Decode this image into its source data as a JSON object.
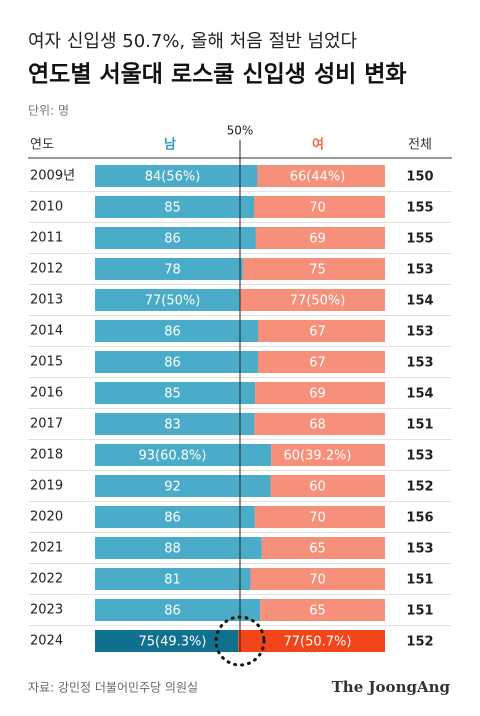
{
  "chart_data": {
    "type": "diverging-bar",
    "subtitle": "여자 신입생 50.7%, 올해 처음 절반 넘었다",
    "title": "연도별 서울대 로스쿨 신입생 성비 변화",
    "unit": "단위: 명",
    "headers": [
      "연도",
      "남",
      "여",
      "전체"
    ],
    "categories": [
      "2009년",
      "2010",
      "2011",
      "2012",
      "2013",
      "2014",
      "2015",
      "2016",
      "2017",
      "2018",
      "2019",
      "2020",
      "2021",
      "2022",
      "2023",
      "2024"
    ],
    "series": [
      {
        "name": "남",
        "color": "#4aacc8",
        "highlight_color": "#10708f",
        "values": [
          84,
          85,
          86,
          78,
          77,
          86,
          86,
          85,
          83,
          93,
          92,
          86,
          88,
          81,
          86,
          75
        ],
        "value_labels": [
          "84(56%)",
          "85",
          "86",
          "78",
          "77(50%)",
          "86",
          "86",
          "85",
          "83",
          "93(60.8%)",
          "92",
          "86",
          "88",
          "81",
          "86",
          "75(49.3%)"
        ]
      },
      {
        "name": "여",
        "color": "#f6907a",
        "highlight_color": "#f2461a",
        "values": [
          66,
          70,
          69,
          75,
          77,
          67,
          67,
          69,
          68,
          60,
          60,
          70,
          65,
          70,
          65,
          77
        ],
        "value_labels": [
          "66(44%)",
          "70",
          "69",
          "75",
          "77(50%)",
          "67",
          "67",
          "69",
          "68",
          "60(39.2%)",
          "60",
          "70",
          "65",
          "70",
          "65",
          "77(50.7%)"
        ]
      }
    ],
    "totals": [
      150,
      155,
      155,
      153,
      154,
      153,
      153,
      154,
      151,
      153,
      152,
      156,
      153,
      151,
      151,
      152
    ],
    "highlight": "2024",
    "xlim": [
      0,
      100
    ],
    "xticks": [
      {
        "value": 50,
        "label": "50%"
      }
    ],
    "source": "자료: 강민정 더불어민주당 의원실",
    "logo": "The JoongAng"
  }
}
